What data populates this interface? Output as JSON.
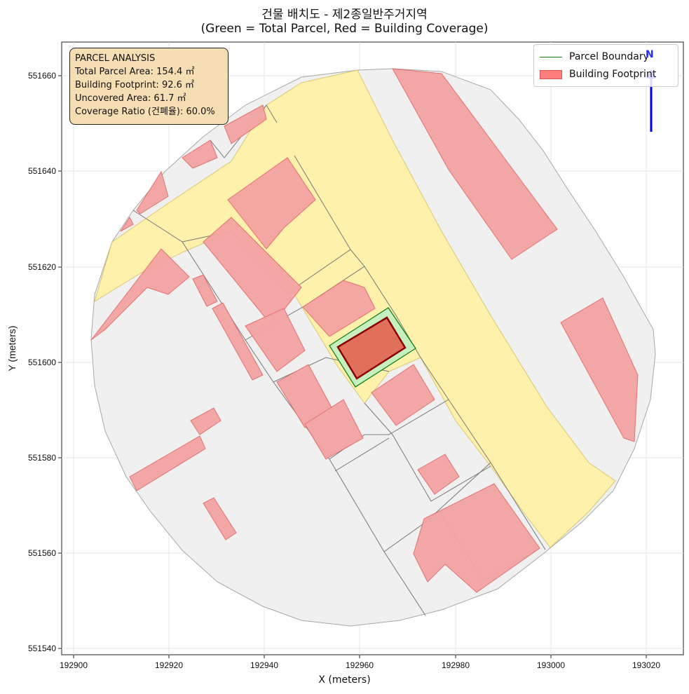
{
  "title_line1": "건물 배치도 - 제2종일반주거지역",
  "title_line2": "(Green = Total Parcel, Red = Building Coverage)",
  "x_axis_label": "X (meters)",
  "y_axis_label": "Y (meters)",
  "x_ticks": [
    "192900",
    "192920",
    "192940",
    "192960",
    "192980",
    "193000",
    "193020"
  ],
  "y_ticks": [
    "551540",
    "551560",
    "551580",
    "551600",
    "551620",
    "551640",
    "551660"
  ],
  "infobox": {
    "heading": "PARCEL ANALYSIS",
    "line1": "Total Parcel Area: 154.4 ㎡",
    "line2": "Building Footprint: 92.6 ㎡",
    "line3": "Uncovered Area: 61.7 ㎡",
    "line4": "Coverage Ratio (건폐율): 60.0%"
  },
  "legend": {
    "parcel_label": "Parcel Boundary",
    "building_label": "Building Footprint"
  },
  "north_label": "N",
  "colors": {
    "parcel_fill": "#c6f0c0",
    "parcel_edge": "#117a11",
    "building_fill": "#e0705a",
    "building_edge": "#8b0000",
    "road": "#fff2a8",
    "context_fill": "#f0f0f0",
    "context_building": "#f4a3a3",
    "north_arrow": "#0000ee"
  }
}
